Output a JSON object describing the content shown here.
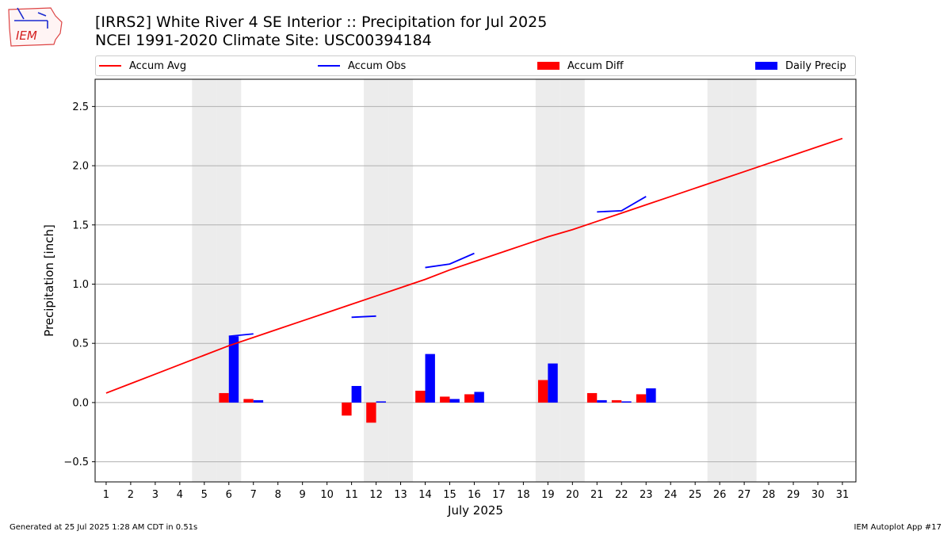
{
  "logo": {
    "text": "IEM"
  },
  "title_line1": "[IRRS2] White River 4 SE Interior :: Precipitation for Jul 2025",
  "title_line2": "NCEI 1991-2020 Climate Site: USC00394184",
  "footer": {
    "left": "Generated at 25 Jul 2025 1:28 AM CDT in 0.51s",
    "right": "IEM Autoplot App #17"
  },
  "colors": {
    "accum_avg": "#ff0000",
    "accum_obs": "#0000ff",
    "accum_diff": "#ff0000",
    "daily_precip": "#0000ff",
    "weekend_shade": "#ececec",
    "grid": "#b0b0b0"
  },
  "chart_data": {
    "type": "bar",
    "xlabel": "July 2025",
    "ylabel": "Precipitation [inch]",
    "ylim": [
      -0.67,
      2.73
    ],
    "yticks": [
      -0.5,
      0.0,
      0.5,
      1.0,
      1.5,
      2.0,
      2.5
    ],
    "ytick_labels": [
      "−0.5",
      "0.0",
      "0.5",
      "1.0",
      "1.5",
      "2.0",
      "2.5"
    ],
    "x": [
      1,
      2,
      3,
      4,
      5,
      6,
      7,
      8,
      9,
      10,
      11,
      12,
      13,
      14,
      15,
      16,
      17,
      18,
      19,
      20,
      21,
      22,
      23,
      24,
      25,
      26,
      27,
      28,
      29,
      30,
      31
    ],
    "xlim": [
      0.55,
      31.55
    ],
    "grid": "horizontal",
    "legend_position": "top",
    "legend": [
      "Accum Avg",
      "Accum Obs",
      "Accum Diff",
      "Daily Precip"
    ],
    "weekend_days": [
      5,
      6,
      12,
      13,
      19,
      20,
      26,
      27
    ],
    "series": [
      {
        "name": "Accum Avg",
        "kind": "line",
        "values": [
          0.08,
          0.16,
          0.24,
          0.32,
          0.4,
          0.48,
          0.55,
          0.62,
          0.69,
          0.76,
          0.83,
          0.9,
          0.97,
          1.04,
          1.12,
          1.19,
          1.26,
          1.33,
          1.4,
          1.46,
          1.53,
          1.6,
          1.67,
          1.74,
          1.81,
          1.88,
          1.95,
          2.02,
          2.09,
          2.16,
          2.23
        ]
      },
      {
        "name": "Accum Obs",
        "kind": "line",
        "values": [
          null,
          null,
          null,
          null,
          null,
          0.56,
          0.58,
          null,
          null,
          null,
          0.72,
          0.73,
          null,
          1.14,
          1.17,
          1.26,
          null,
          null,
          null,
          null,
          1.61,
          1.62,
          1.74,
          null,
          null,
          null,
          null,
          null,
          null,
          null,
          null
        ]
      },
      {
        "name": "Accum Diff",
        "kind": "bar",
        "values": [
          null,
          null,
          null,
          null,
          null,
          0.08,
          0.03,
          null,
          null,
          null,
          -0.11,
          -0.17,
          null,
          0.1,
          0.05,
          0.07,
          null,
          null,
          0.19,
          null,
          0.08,
          0.02,
          0.07,
          null,
          null,
          null,
          null,
          null,
          null,
          null,
          null
        ]
      },
      {
        "name": "Daily Precip",
        "kind": "bar",
        "values": [
          null,
          null,
          null,
          null,
          null,
          0.56,
          0.02,
          null,
          null,
          null,
          0.14,
          0.01,
          null,
          0.41,
          0.03,
          0.09,
          null,
          null,
          0.33,
          null,
          0.02,
          0.01,
          0.12,
          null,
          null,
          null,
          null,
          null,
          null,
          null,
          null
        ]
      }
    ]
  }
}
